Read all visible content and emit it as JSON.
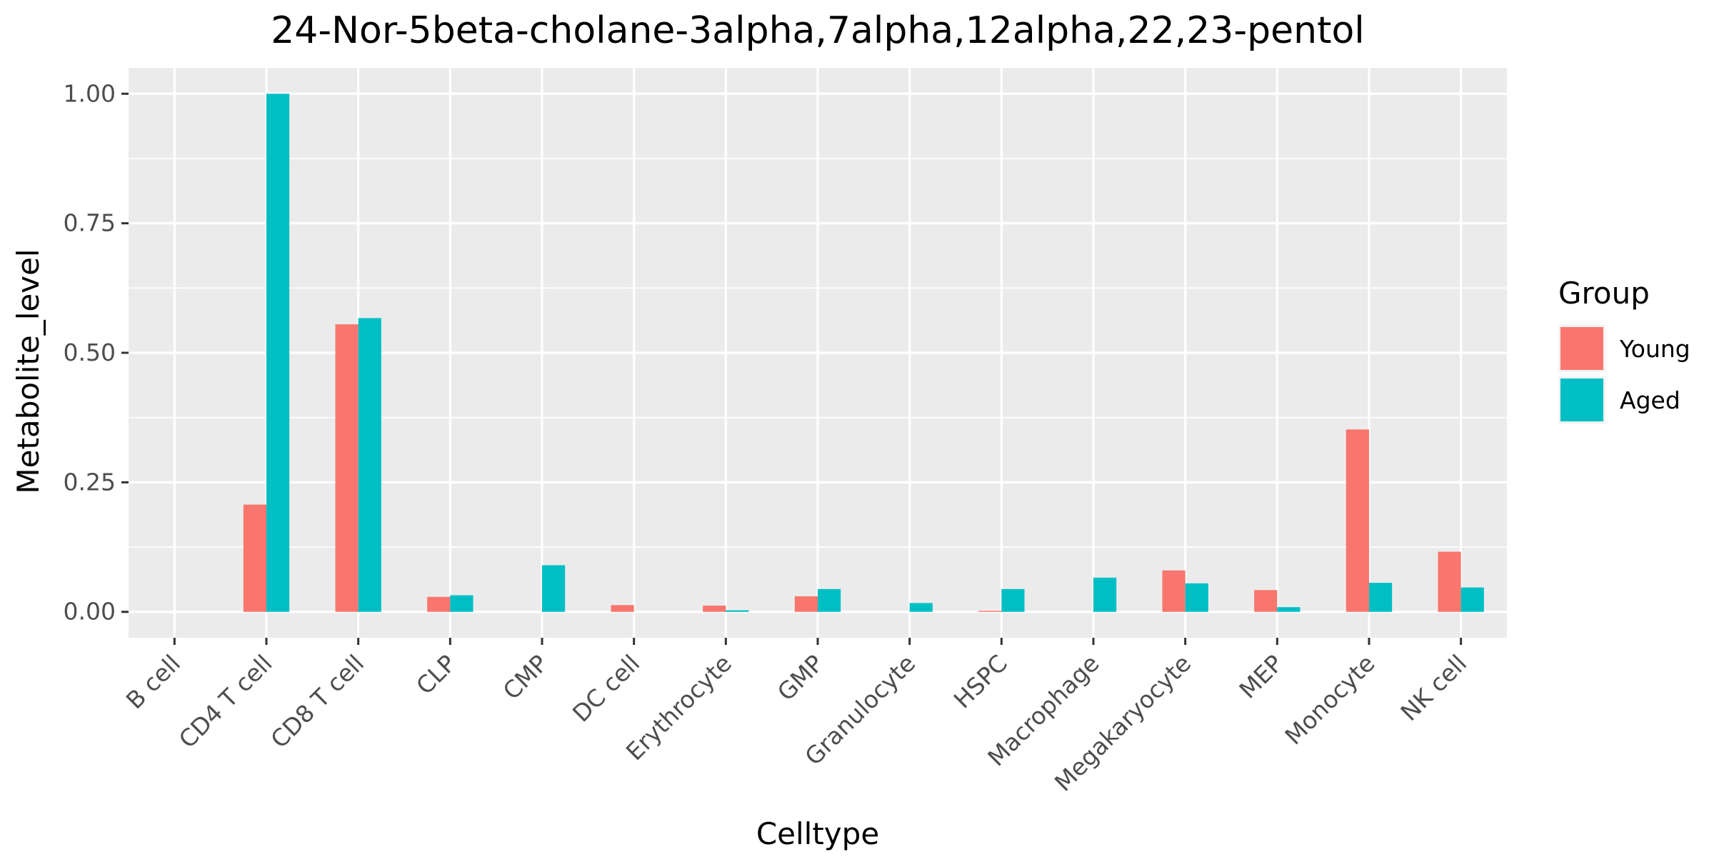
{
  "chart_data": {
    "type": "bar",
    "title": "24-Nor-5beta-cholane-3alpha,7alpha,12alpha,22,23-pentol",
    "xlabel": "Celltype",
    "ylabel": "Metabolite_level",
    "categories": [
      "B cell",
      "CD4 T cell",
      "CD8 T cell",
      "CLP",
      "CMP",
      "DC cell",
      "Erythrocyte",
      "GMP",
      "Granulocyte",
      "HSPC",
      "Macrophage",
      "Megakaryocyte",
      "MEP",
      "Monocyte",
      "NK cell"
    ],
    "series": [
      {
        "name": "Young",
        "color": "#F8766D",
        "values": [
          0,
          0.207,
          0.555,
          0.029,
          0,
          0.013,
          0.012,
          0.03,
          0,
          0.002,
          0,
          0.08,
          0.042,
          0.352,
          0.116
        ]
      },
      {
        "name": "Aged",
        "color": "#00BFC4",
        "values": [
          0,
          1.0,
          0.567,
          0.032,
          0.09,
          0,
          0.003,
          0.044,
          0.017,
          0.044,
          0.066,
          0.055,
          0.009,
          0.056,
          0.047
        ]
      }
    ],
    "ylim": [
      -0.05,
      1.05
    ],
    "yticks": [
      0,
      0.25,
      0.5,
      0.75,
      1.0
    ],
    "ytick_labels": [
      "0.00",
      "0.25",
      "0.50",
      "0.75",
      "1.00"
    ],
    "grid": true,
    "legend": {
      "title": "Group",
      "placement": "right"
    }
  }
}
